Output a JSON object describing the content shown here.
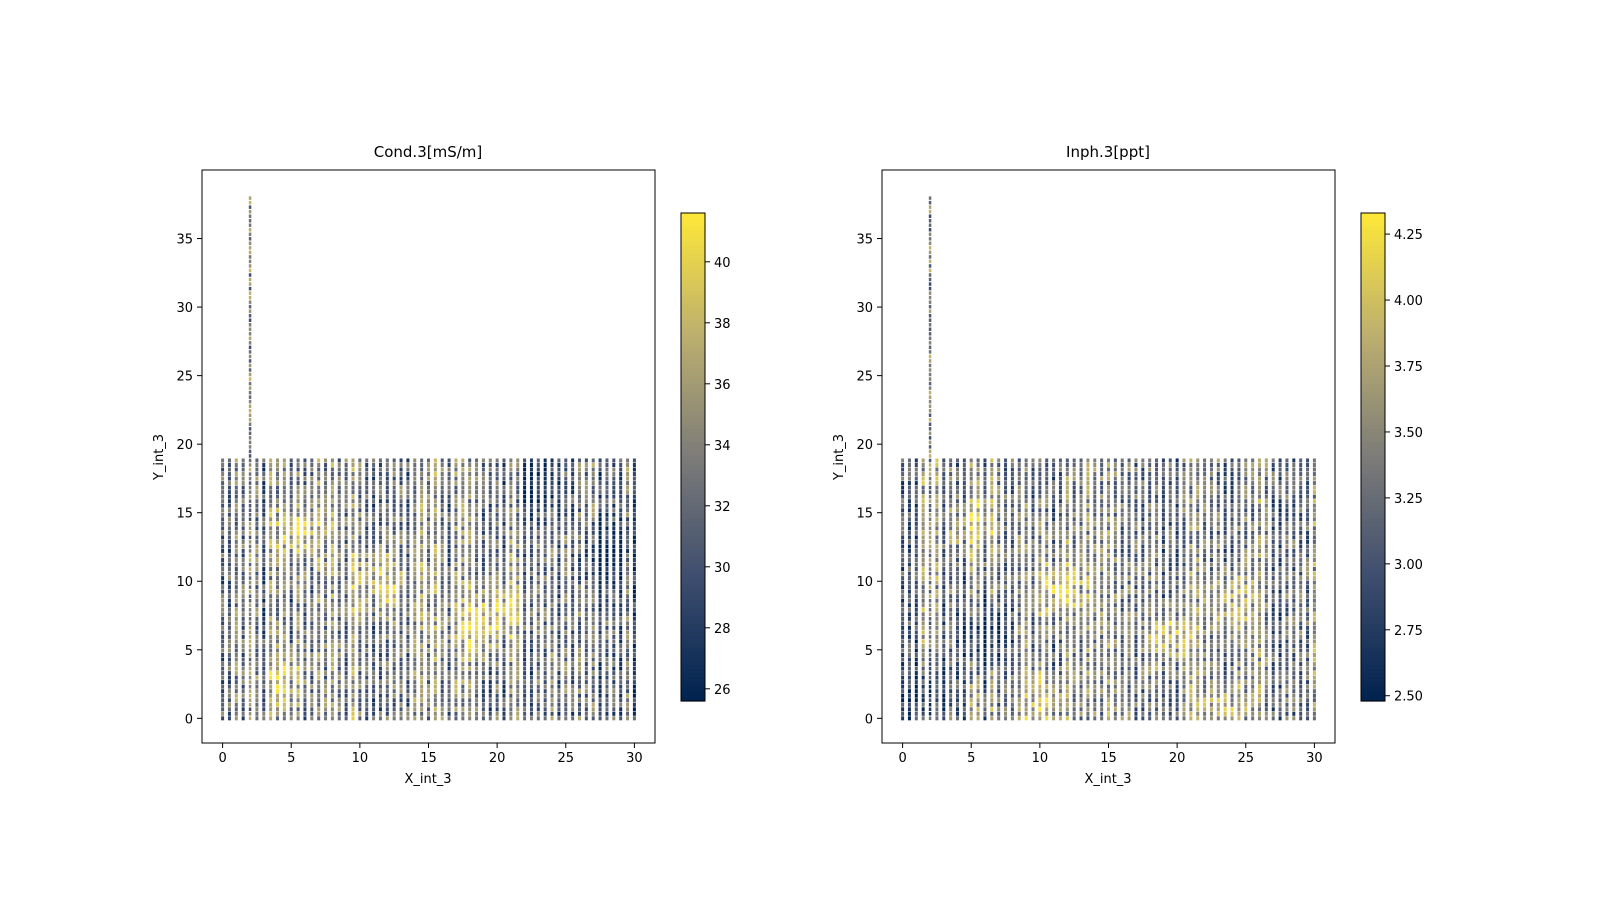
{
  "chart_data": [
    {
      "type": "scatter",
      "title": "Cond.3[mS/m]",
      "xlabel": "X_int_3",
      "ylabel": "Y_int_3",
      "xlim": [
        -1.5,
        31.5
      ],
      "ylim": [
        -1.8,
        40
      ],
      "xticks": [
        0,
        5,
        10,
        15,
        20,
        25,
        30
      ],
      "yticks": [
        0,
        5,
        10,
        15,
        20,
        25,
        30,
        35
      ],
      "colormap": "cividis",
      "colorbar": {
        "min": 25.6,
        "max": 41.6,
        "ticks": [
          26,
          28,
          30,
          32,
          34,
          36,
          38,
          40
        ]
      },
      "series": [
        {
          "kind": "grid-lines",
          "x_from": 0,
          "x_to": 30,
          "x_step": 0.5,
          "y_from": 0,
          "y_to": 19,
          "y_step": 0.33
        },
        {
          "kind": "survey-line",
          "x": 2,
          "y_from": 0,
          "y_to": 38,
          "y_step": 0.33
        }
      ],
      "features": [
        {
          "label": "high zone",
          "x": 11.5,
          "y": 10,
          "value": 41
        },
        {
          "label": "high zone",
          "x": 5.5,
          "y": 13.5,
          "value": 40
        },
        {
          "label": "high zone",
          "x": 18.5,
          "y": 6.5,
          "value": 40
        },
        {
          "label": "high zone",
          "x": 4.5,
          "y": 3,
          "value": 39
        },
        {
          "label": "high zone",
          "x": 20.5,
          "y": 8,
          "value": 39
        },
        {
          "label": "low zone",
          "x": 28,
          "y": 12,
          "value": 26
        },
        {
          "label": "low zone",
          "x": 23,
          "y": 17,
          "value": 26
        }
      ]
    },
    {
      "type": "scatter",
      "title": "Inph.3[ppt]",
      "xlabel": "X_int_3",
      "ylabel": "Y_int_3",
      "xlim": [
        -1.5,
        31.5
      ],
      "ylim": [
        -1.8,
        40
      ],
      "xticks": [
        0,
        5,
        10,
        15,
        20,
        25,
        30
      ],
      "yticks": [
        0,
        5,
        10,
        15,
        20,
        25,
        30,
        35
      ],
      "colormap": "cividis",
      "colorbar": {
        "min": 2.48,
        "max": 4.33,
        "ticks": [
          2.5,
          2.75,
          3.0,
          3.25,
          3.5,
          3.75,
          4.0,
          4.25
        ]
      },
      "series": [
        {
          "kind": "grid-lines",
          "x_from": 0,
          "x_to": 30,
          "x_step": 0.5,
          "y_from": 0,
          "y_to": 19,
          "y_step": 0.33
        },
        {
          "kind": "survey-line",
          "x": 2,
          "y_from": 0,
          "y_to": 38,
          "y_step": 0.33
        }
      ],
      "features": [
        {
          "label": "high zone",
          "x": 11.5,
          "y": 9.5,
          "value": 4.3
        },
        {
          "label": "high zone",
          "x": 19.5,
          "y": 6,
          "value": 4.2
        },
        {
          "label": "high zone",
          "x": 24,
          "y": 8.5,
          "value": 4.1
        },
        {
          "label": "high zone",
          "x": 10,
          "y": 1,
          "value": 4.2
        },
        {
          "label": "high zone",
          "x": 5,
          "y": 14,
          "value": 4.0
        },
        {
          "label": "high zone",
          "x": 23.5,
          "y": 1,
          "value": 4.1
        },
        {
          "label": "low zone",
          "x": 2,
          "y": 2,
          "value": 2.55
        },
        {
          "label": "low zone",
          "x": 6,
          "y": 6,
          "value": 2.6
        }
      ]
    }
  ]
}
